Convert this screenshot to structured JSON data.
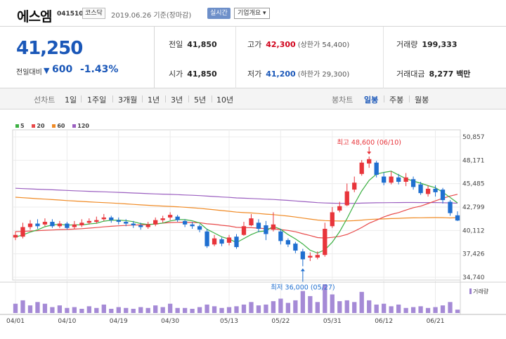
{
  "header": {
    "stock_name": "에스엠",
    "stock_code": "041510",
    "market": "코스닥",
    "date_text": "2019.06.26 기준(장마감)",
    "realtime_label": "실시간",
    "company_info_label": "기업개요 ▾"
  },
  "price": {
    "current": "41,250",
    "change_label": "전일대비",
    "change_arrow": "▼",
    "change_value": "600",
    "change_rate": "-1.43%"
  },
  "stats": {
    "prev_close_label": "전일",
    "prev_close": "41,850",
    "high_label": "고가",
    "high": "42,300",
    "upper_limit": "(상한가 54,400)",
    "volume_label": "거래량",
    "volume": "199,333",
    "open_label": "시가",
    "open": "41,850",
    "low_label": "저가",
    "low": "41,200",
    "lower_limit": "(하한가 29,300)",
    "amount_label": "거래대금",
    "amount": "8,277 백만"
  },
  "periods": {
    "line_chart": "선차트",
    "items": [
      "1일",
      "1주일",
      "3개월",
      "1년",
      "3년",
      "5년",
      "10년"
    ],
    "candle_chart": "봉차트",
    "candle_items": [
      "일봉",
      "주봉",
      "월봉"
    ],
    "active_candle": "일봉"
  },
  "legend": {
    "ma5": "5",
    "ma20": "20",
    "ma60": "60",
    "ma120": "120",
    "colors": {
      "ma5": "#3cb043",
      "ma20": "#e84a4a",
      "ma60": "#f08a24",
      "ma120": "#9b5fc0"
    }
  },
  "volume_label": "거래량",
  "chart_data": {
    "type": "candlestick",
    "y_ticks": [
      "50,857",
      "48,171",
      "45,485",
      "42,799",
      "40,112",
      "37,426",
      "34,740"
    ],
    "ylim": [
      34740,
      50857
    ],
    "x_ticks": [
      {
        "label": "04/01",
        "index": 0
      },
      {
        "label": "04/10",
        "index": 7
      },
      {
        "label": "04/19",
        "index": 14
      },
      {
        "label": "04/30",
        "index": 21
      },
      {
        "label": "05/13",
        "index": 29
      },
      {
        "label": "05/22",
        "index": 36
      },
      {
        "label": "05/31",
        "index": 43
      },
      {
        "label": "06/12",
        "index": 50
      },
      {
        "label": "06/21",
        "index": 57
      }
    ],
    "annotations": {
      "high_label": "최고 48,600 (06/10)",
      "high_value": 48600,
      "high_index": 48,
      "low_label": "최저 36,000 (05/27)",
      "low_value": 36000,
      "low_index": 39
    },
    "colors": {
      "up": "#e8353b",
      "down": "#1f6fd0",
      "volume": "#a58ad6"
    },
    "candles": [
      {
        "o": 39300,
        "c": 39600,
        "h": 40000,
        "l": 39000
      },
      {
        "o": 39400,
        "c": 40500,
        "h": 41000,
        "l": 39200
      },
      {
        "o": 40500,
        "c": 40900,
        "h": 41300,
        "l": 40200
      },
      {
        "o": 40900,
        "c": 40600,
        "h": 41400,
        "l": 40300
      },
      {
        "o": 40800,
        "c": 41100,
        "h": 41500,
        "l": 40600
      },
      {
        "o": 41100,
        "c": 40600,
        "h": 41400,
        "l": 40400
      },
      {
        "o": 40600,
        "c": 40900,
        "h": 41200,
        "l": 40400
      },
      {
        "o": 40900,
        "c": 40400,
        "h": 41100,
        "l": 40200
      },
      {
        "o": 40500,
        "c": 40800,
        "h": 41200,
        "l": 40300
      },
      {
        "o": 40700,
        "c": 41000,
        "h": 41400,
        "l": 40500
      },
      {
        "o": 41000,
        "c": 41200,
        "h": 41500,
        "l": 40800
      },
      {
        "o": 41100,
        "c": 41300,
        "h": 41700,
        "l": 40900
      },
      {
        "o": 41400,
        "c": 41600,
        "h": 42000,
        "l": 41200
      },
      {
        "o": 41600,
        "c": 41300,
        "h": 41800,
        "l": 41000
      },
      {
        "o": 41300,
        "c": 41100,
        "h": 41600,
        "l": 40800
      },
      {
        "o": 41100,
        "c": 40900,
        "h": 41400,
        "l": 40600
      },
      {
        "o": 40900,
        "c": 40700,
        "h": 41200,
        "l": 40400
      },
      {
        "o": 40700,
        "c": 40500,
        "h": 41000,
        "l": 40200
      },
      {
        "o": 40500,
        "c": 40800,
        "h": 41100,
        "l": 40300
      },
      {
        "o": 40800,
        "c": 41300,
        "h": 41600,
        "l": 40600
      },
      {
        "o": 41300,
        "c": 41500,
        "h": 41800,
        "l": 41000
      },
      {
        "o": 41600,
        "c": 41900,
        "h": 42200,
        "l": 41300
      },
      {
        "o": 41700,
        "c": 41300,
        "h": 41900,
        "l": 41100
      },
      {
        "o": 41200,
        "c": 40800,
        "h": 41400,
        "l": 40500
      },
      {
        "o": 40800,
        "c": 40600,
        "h": 41100,
        "l": 40300
      },
      {
        "o": 40600,
        "c": 40200,
        "h": 40800,
        "l": 39900
      },
      {
        "o": 40000,
        "c": 38300,
        "h": 40300,
        "l": 38100
      },
      {
        "o": 38500,
        "c": 39200,
        "h": 39600,
        "l": 38300
      },
      {
        "o": 39100,
        "c": 38600,
        "h": 39300,
        "l": 38300
      },
      {
        "o": 38700,
        "c": 39300,
        "h": 39600,
        "l": 38400
      },
      {
        "o": 39400,
        "c": 38200,
        "h": 39700,
        "l": 38000
      },
      {
        "o": 39600,
        "c": 40600,
        "h": 41100,
        "l": 39500
      },
      {
        "o": 40700,
        "c": 41500,
        "h": 42000,
        "l": 40600
      },
      {
        "o": 41000,
        "c": 40300,
        "h": 41400,
        "l": 39900
      },
      {
        "o": 40700,
        "c": 39700,
        "h": 41200,
        "l": 39000
      },
      {
        "o": 40200,
        "c": 40800,
        "h": 42200,
        "l": 40000
      },
      {
        "o": 40000,
        "c": 38900,
        "h": 40300,
        "l": 38500
      },
      {
        "o": 39000,
        "c": 38500,
        "h": 39200,
        "l": 38200
      },
      {
        "o": 38600,
        "c": 37800,
        "h": 38800,
        "l": 37500
      },
      {
        "o": 37700,
        "c": 36800,
        "h": 38000,
        "l": 36000
      },
      {
        "o": 37000,
        "c": 37200,
        "h": 37600,
        "l": 36600
      },
      {
        "o": 37000,
        "c": 37300,
        "h": 37700,
        "l": 36800
      },
      {
        "o": 37300,
        "c": 40300,
        "h": 41000,
        "l": 37100
      },
      {
        "o": 40600,
        "c": 42200,
        "h": 42800,
        "l": 40400
      },
      {
        "o": 42400,
        "c": 42900,
        "h": 43400,
        "l": 42200
      },
      {
        "o": 43000,
        "c": 44600,
        "h": 45500,
        "l": 42900
      },
      {
        "o": 44800,
        "c": 45600,
        "h": 46300,
        "l": 44500
      },
      {
        "o": 46600,
        "c": 47900,
        "h": 48200,
        "l": 46400
      },
      {
        "o": 47800,
        "c": 48300,
        "h": 48600,
        "l": 47300
      },
      {
        "o": 47900,
        "c": 46500,
        "h": 48100,
        "l": 46200
      },
      {
        "o": 46300,
        "c": 45600,
        "h": 46800,
        "l": 45300
      },
      {
        "o": 45600,
        "c": 46300,
        "h": 46900,
        "l": 45400
      },
      {
        "o": 46200,
        "c": 45700,
        "h": 46600,
        "l": 45400
      },
      {
        "o": 45700,
        "c": 46200,
        "h": 46700,
        "l": 45200
      },
      {
        "o": 46000,
        "c": 45100,
        "h": 46300,
        "l": 44800
      },
      {
        "o": 45400,
        "c": 44400,
        "h": 45700,
        "l": 44200
      },
      {
        "o": 44300,
        "c": 44900,
        "h": 45300,
        "l": 44000
      },
      {
        "o": 44900,
        "c": 44500,
        "h": 45300,
        "l": 44000
      },
      {
        "o": 44800,
        "c": 43600,
        "h": 45000,
        "l": 43200
      },
      {
        "o": 43400,
        "c": 42100,
        "h": 43600,
        "l": 41800
      },
      {
        "o": 41850,
        "c": 41250,
        "h": 42300,
        "l": 41200
      }
    ],
    "volumes": [
      22,
      30,
      18,
      26,
      22,
      14,
      18,
      12,
      14,
      10,
      16,
      12,
      20,
      10,
      14,
      12,
      10,
      14,
      12,
      18,
      14,
      22,
      12,
      12,
      10,
      14,
      20,
      16,
      12,
      14,
      16,
      20,
      26,
      18,
      20,
      28,
      34,
      24,
      30,
      52,
      40,
      26,
      68,
      44,
      28,
      30,
      26,
      50,
      30,
      20,
      22,
      16,
      20,
      12,
      14,
      16,
      12,
      14,
      18,
      26,
      8
    ]
  }
}
